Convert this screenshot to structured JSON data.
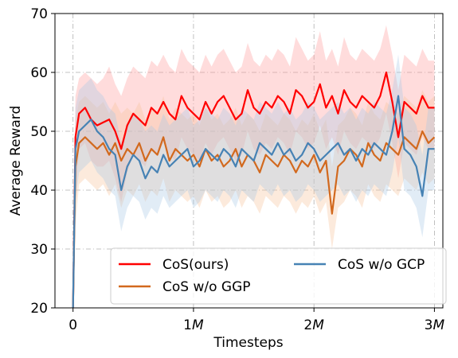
{
  "chart_data": {
    "type": "line",
    "title": "",
    "xlabel": "Timesteps",
    "ylabel": "Average Reward",
    "xlim": [
      -0.15,
      3.07
    ],
    "ylim": [
      20,
      70
    ],
    "x_unit": "M",
    "x_ticks": [
      0,
      1,
      2,
      3
    ],
    "x_tick_labels": [
      "0",
      "1",
      "2",
      "3"
    ],
    "x_tick_suffix": "M",
    "y_ticks": [
      20,
      30,
      40,
      50,
      60,
      70
    ],
    "y_tick_labels": [
      "20",
      "30",
      "40",
      "50",
      "60",
      "70"
    ],
    "grid": true,
    "legend_position": "bottom-right",
    "legend_columns": 2,
    "series": [
      {
        "name": "CoS(ours)",
        "color": "#ff0000",
        "band_color": "#ff9a9a",
        "x": [
          0,
          0.02,
          0.05,
          0.1,
          0.15,
          0.2,
          0.25,
          0.3,
          0.35,
          0.4,
          0.45,
          0.5,
          0.55,
          0.6,
          0.65,
          0.7,
          0.75,
          0.8,
          0.85,
          0.9,
          0.95,
          1.0,
          1.05,
          1.1,
          1.15,
          1.2,
          1.25,
          1.3,
          1.35,
          1.4,
          1.45,
          1.5,
          1.55,
          1.6,
          1.65,
          1.7,
          1.75,
          1.8,
          1.85,
          1.9,
          1.95,
          2.0,
          2.05,
          2.1,
          2.15,
          2.2,
          2.25,
          2.3,
          2.35,
          2.4,
          2.45,
          2.5,
          2.55,
          2.6,
          2.65,
          2.7,
          2.75,
          2.8,
          2.85,
          2.9,
          2.95,
          3.0
        ],
        "y": [
          20,
          49,
          53,
          54,
          52,
          51,
          51.5,
          52,
          50,
          47,
          51,
          53,
          52,
          51,
          54,
          53,
          55,
          53,
          52,
          56,
          54,
          53,
          52,
          55,
          53,
          55,
          56,
          54,
          52,
          53,
          57,
          54,
          53,
          55,
          54,
          56,
          55,
          53,
          57,
          56,
          54,
          55,
          58,
          54,
          56,
          53,
          57,
          55,
          54,
          56,
          55,
          54,
          56,
          60,
          55,
          49,
          55,
          54,
          53,
          56,
          54,
          54
        ],
        "lower": [
          20,
          38,
          47,
          48,
          45,
          44,
          44,
          45,
          42,
          38,
          43,
          46,
          45,
          44,
          47,
          46,
          48,
          46,
          45,
          49,
          47,
          46,
          45,
          48,
          46,
          48,
          49,
          47,
          45,
          46,
          50,
          47,
          46,
          48,
          47,
          49,
          48,
          46,
          50,
          49,
          47,
          48,
          51,
          47,
          49,
          46,
          50,
          48,
          47,
          49,
          48,
          47,
          49,
          53,
          48,
          42,
          48,
          47,
          46,
          49,
          47,
          47
        ],
        "upper": [
          20,
          56,
          59,
          60,
          59,
          58,
          59,
          61,
          58,
          56,
          59,
          61,
          60,
          59,
          62,
          61,
          63,
          61,
          60,
          64,
          62,
          61,
          60,
          63,
          61,
          63,
          64,
          62,
          60,
          61,
          65,
          62,
          61,
          63,
          62,
          64,
          63,
          61,
          66,
          64,
          62,
          63,
          67,
          62,
          64,
          61,
          66,
          63,
          62,
          64,
          63,
          62,
          64,
          68,
          63,
          57,
          63,
          62,
          61,
          64,
          62,
          62
        ]
      },
      {
        "name": "CoS w/o GGP",
        "color": "#d2691e",
        "band_color": "#f6c39a",
        "x": [
          0,
          0.02,
          0.05,
          0.1,
          0.15,
          0.2,
          0.25,
          0.3,
          0.35,
          0.4,
          0.45,
          0.5,
          0.55,
          0.6,
          0.65,
          0.7,
          0.75,
          0.8,
          0.85,
          0.9,
          0.95,
          1.0,
          1.05,
          1.1,
          1.15,
          1.2,
          1.25,
          1.3,
          1.35,
          1.4,
          1.45,
          1.5,
          1.55,
          1.6,
          1.65,
          1.7,
          1.75,
          1.8,
          1.85,
          1.9,
          1.95,
          2.0,
          2.05,
          2.1,
          2.15,
          2.2,
          2.25,
          2.3,
          2.35,
          2.4,
          2.45,
          2.5,
          2.55,
          2.6,
          2.65,
          2.7,
          2.75,
          2.8,
          2.85,
          2.9,
          2.95,
          3.0
        ],
        "y": [
          20,
          44,
          48,
          49,
          48,
          47,
          48,
          46,
          48,
          45,
          47,
          46,
          48,
          45,
          47,
          46,
          49,
          45,
          47,
          46,
          45,
          46,
          44,
          47,
          45,
          46,
          44,
          45,
          47,
          44,
          46,
          45,
          43,
          46,
          45,
          44,
          46,
          45,
          43,
          45,
          44,
          46,
          43,
          45,
          36,
          44,
          45,
          47,
          46,
          44,
          48,
          46,
          45,
          48,
          47,
          46,
          49,
          48,
          47,
          50,
          48,
          49
        ],
        "lower": [
          20,
          34,
          41,
          42,
          41,
          40,
          41,
          39,
          41,
          37,
          40,
          39,
          41,
          38,
          40,
          39,
          42,
          38,
          40,
          39,
          38,
          39,
          37,
          40,
          38,
          39,
          37,
          38,
          40,
          37,
          39,
          38,
          36,
          39,
          38,
          37,
          39,
          38,
          36,
          38,
          37,
          39,
          36,
          38,
          30,
          37,
          38,
          40,
          39,
          37,
          41,
          39,
          38,
          41,
          40,
          39,
          42,
          41,
          40,
          43,
          41,
          42
        ],
        "upper": [
          20,
          52,
          55,
          56,
          55,
          54,
          55,
          53,
          55,
          53,
          54,
          53,
          55,
          52,
          54,
          53,
          56,
          52,
          54,
          53,
          52,
          53,
          51,
          54,
          52,
          53,
          51,
          52,
          54,
          51,
          53,
          52,
          50,
          53,
          52,
          51,
          53,
          52,
          50,
          52,
          51,
          53,
          50,
          52,
          44,
          51,
          52,
          54,
          53,
          51,
          55,
          53,
          52,
          55,
          54,
          53,
          56,
          55,
          54,
          57,
          55,
          56
        ]
      },
      {
        "name": "CoS w/o GCP",
        "color": "#4682b4",
        "band_color": "#a9c8e4",
        "x": [
          0,
          0.02,
          0.05,
          0.1,
          0.15,
          0.2,
          0.25,
          0.3,
          0.35,
          0.4,
          0.45,
          0.5,
          0.55,
          0.6,
          0.65,
          0.7,
          0.75,
          0.8,
          0.85,
          0.9,
          0.95,
          1.0,
          1.05,
          1.1,
          1.15,
          1.2,
          1.25,
          1.3,
          1.35,
          1.4,
          1.45,
          1.5,
          1.55,
          1.6,
          1.65,
          1.7,
          1.75,
          1.8,
          1.85,
          1.9,
          1.95,
          2.0,
          2.05,
          2.1,
          2.15,
          2.2,
          2.25,
          2.3,
          2.35,
          2.4,
          2.45,
          2.5,
          2.55,
          2.6,
          2.65,
          2.7,
          2.75,
          2.8,
          2.85,
          2.9,
          2.95,
          3.0
        ],
        "y": [
          20,
          47,
          50,
          51,
          52,
          50,
          49,
          47,
          46,
          40,
          44,
          46,
          45,
          42,
          44,
          43,
          46,
          44,
          45,
          46,
          47,
          44,
          45,
          47,
          46,
          45,
          47,
          46,
          44,
          47,
          46,
          45,
          48,
          47,
          46,
          48,
          46,
          47,
          45,
          46,
          48,
          47,
          45,
          46,
          47,
          48,
          46,
          47,
          45,
          47,
          46,
          48,
          47,
          46,
          50,
          56,
          47,
          46,
          44,
          39,
          47,
          47
        ],
        "lower": [
          20,
          38,
          43,
          44,
          45,
          43,
          42,
          40,
          39,
          33,
          37,
          39,
          38,
          35,
          37,
          36,
          39,
          37,
          38,
          39,
          40,
          37,
          38,
          40,
          39,
          38,
          40,
          39,
          37,
          40,
          39,
          38,
          41,
          40,
          39,
          41,
          39,
          40,
          38,
          39,
          41,
          40,
          38,
          39,
          40,
          41,
          39,
          40,
          38,
          40,
          39,
          41,
          40,
          39,
          43,
          49,
          40,
          39,
          37,
          32,
          40,
          40
        ],
        "upper": [
          20,
          54,
          57,
          58,
          59,
          57,
          56,
          54,
          53,
          48,
          51,
          53,
          52,
          50,
          51,
          50,
          53,
          51,
          52,
          53,
          54,
          51,
          52,
          54,
          53,
          52,
          54,
          53,
          51,
          54,
          53,
          52,
          55,
          54,
          53,
          55,
          53,
          54,
          52,
          53,
          55,
          54,
          52,
          53,
          54,
          55,
          53,
          54,
          52,
          54,
          53,
          55,
          54,
          53,
          57,
          63,
          54,
          53,
          51,
          46,
          54,
          54
        ]
      }
    ]
  }
}
